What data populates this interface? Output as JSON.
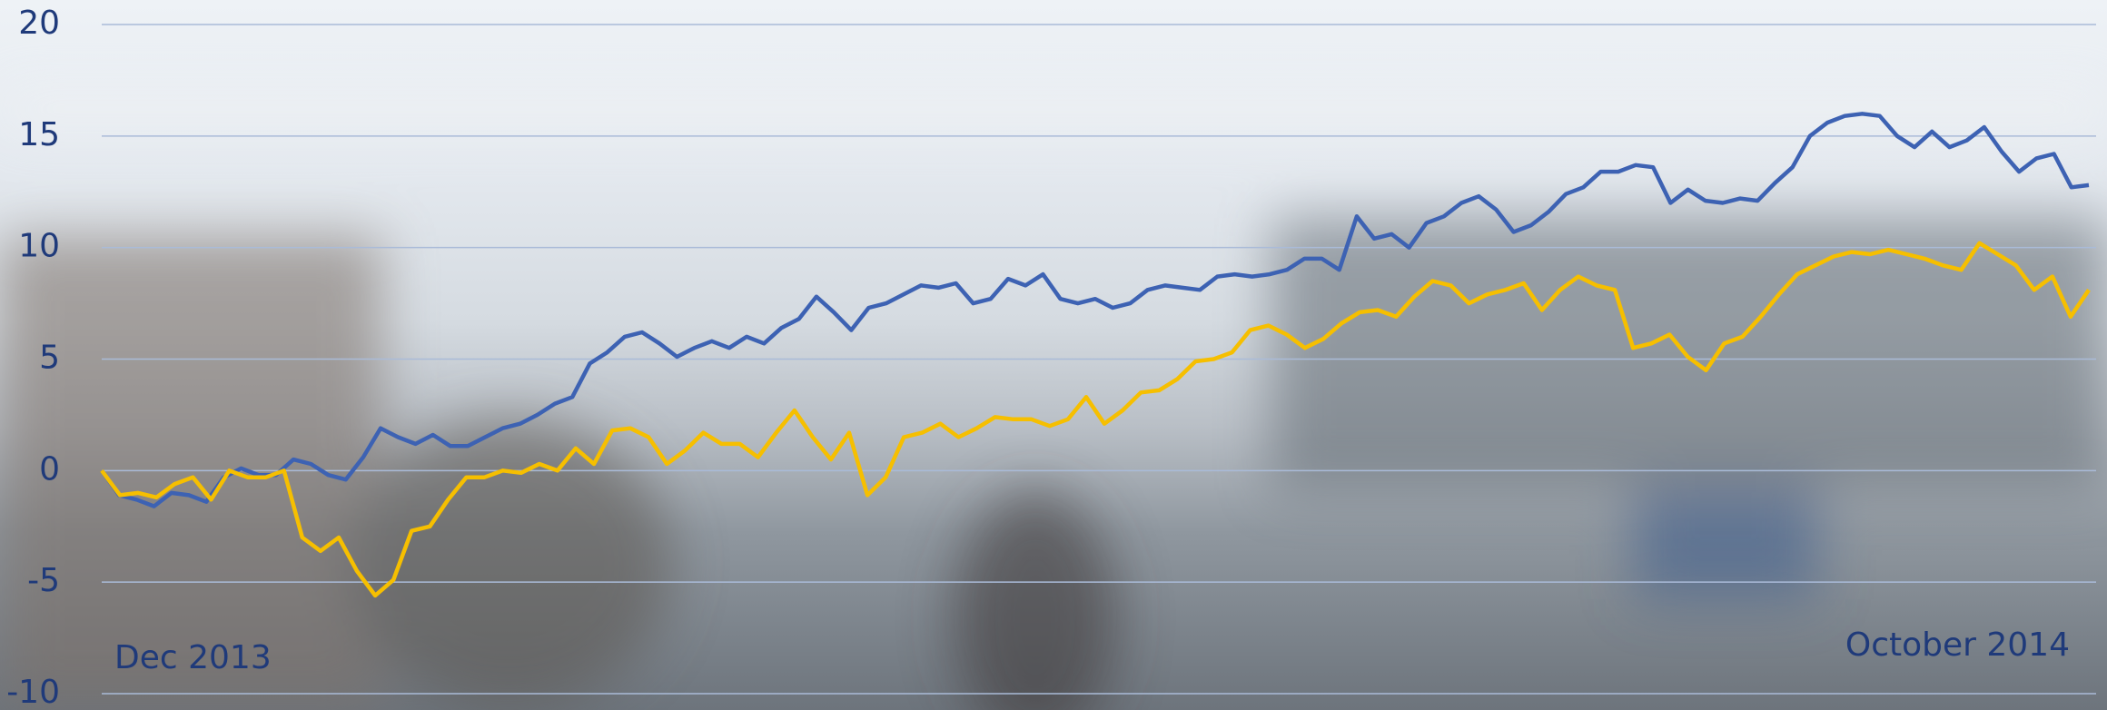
{
  "chart_data": {
    "type": "line",
    "annotations": [
      "Dec 2013",
      "October 2014"
    ],
    "ylim": [
      -10,
      20
    ],
    "yticks": [
      20,
      15,
      10,
      5,
      0,
      -5,
      -10
    ],
    "grid": true,
    "series": [
      {
        "color": "#3d62b3",
        "values": [
          0,
          -1.1,
          -1.3,
          -1.6,
          -1.0,
          -1.1,
          -1.4,
          -0.3,
          0.1,
          -0.2,
          -0.2,
          0.5,
          0.3,
          -0.2,
          -0.4,
          0.6,
          1.9,
          1.5,
          1.2,
          1.6,
          1.1,
          1.1,
          1.5,
          1.9,
          2.1,
          2.5,
          3.0,
          3.3,
          4.8,
          5.3,
          6.0,
          6.2,
          5.7,
          5.1,
          5.5,
          5.8,
          5.5,
          6.0,
          5.7,
          6.4,
          6.8,
          7.8,
          7.1,
          6.3,
          7.3,
          7.5,
          7.9,
          8.3,
          8.2,
          8.4,
          7.5,
          7.7,
          8.6,
          8.3,
          8.8,
          7.7,
          7.5,
          7.7,
          7.3,
          7.5,
          8.1,
          8.3,
          8.2,
          8.1,
          8.7,
          8.8,
          8.7,
          8.8,
          9.0,
          9.5,
          9.5,
          9.0,
          11.4,
          10.4,
          10.6,
          10.0,
          11.1,
          11.4,
          12.0,
          12.3,
          11.7,
          10.7,
          11.0,
          11.6,
          12.4,
          12.7,
          13.4,
          13.4,
          13.7,
          13.6,
          12.0,
          12.6,
          12.1,
          12.0,
          12.2,
          12.1,
          12.9,
          13.6,
          15.0,
          15.6,
          15.9,
          16.0,
          15.9,
          15.0,
          14.5,
          15.2,
          14.5,
          14.8,
          15.4,
          14.3,
          13.4,
          14.0,
          14.2,
          12.7,
          12.8
        ]
      },
      {
        "color": "#f6bf00",
        "values": [
          0,
          -1.1,
          -1.0,
          -1.2,
          -0.6,
          -0.3,
          -1.3,
          0,
          -0.3,
          -0.3,
          0,
          -3.0,
          -3.6,
          -3.0,
          -4.5,
          -5.6,
          -4.9,
          -2.7,
          -2.5,
          -1.3,
          -0.3,
          -0.3,
          0,
          -0.1,
          0.3,
          0,
          1.0,
          0.3,
          1.8,
          1.9,
          1.5,
          0.3,
          0.9,
          1.7,
          1.2,
          1.2,
          0.6,
          1.7,
          2.7,
          1.5,
          0.5,
          1.7,
          -1.1,
          -0.3,
          1.5,
          1.7,
          2.1,
          1.5,
          1.9,
          2.4,
          2.3,
          2.3,
          2.0,
          2.3,
          3.3,
          2.1,
          2.7,
          3.5,
          3.6,
          4.1,
          4.9,
          5.0,
          5.3,
          6.3,
          6.5,
          6.1,
          5.5,
          5.9,
          6.6,
          7.1,
          7.2,
          6.9,
          7.8,
          8.5,
          8.3,
          7.5,
          7.9,
          8.1,
          8.4,
          7.2,
          8.1,
          8.7,
          8.3,
          8.1,
          5.5,
          5.7,
          6.1,
          5.1,
          4.5,
          5.7,
          6.0,
          6.9,
          7.9,
          8.8,
          9.2,
          9.6,
          9.8,
          9.7,
          9.9,
          9.7,
          9.5,
          9.2,
          9.0,
          10.2,
          9.7,
          9.2,
          8.1,
          8.7,
          6.9,
          8.1
        ]
      }
    ]
  }
}
